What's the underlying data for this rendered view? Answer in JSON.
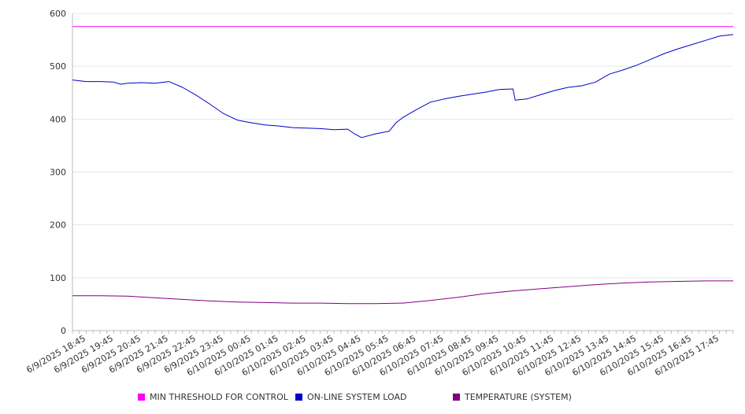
{
  "chart_data": {
    "type": "line",
    "ylim": [
      0,
      600
    ],
    "y_ticks": [
      0,
      100,
      200,
      300,
      400,
      500,
      600
    ],
    "grid": true,
    "legend_position": "bottom",
    "x_range": [
      "6/9/2025 18:15",
      "6/10/2025 18:15"
    ],
    "x_tick_labels": [
      "6/9/2025 18:45",
      "6/9/2025 19:45",
      "6/9/2025 20:45",
      "6/9/2025 21:45",
      "6/9/2025 22:45",
      "6/9/2025 23:45",
      "6/10/2025 00:45",
      "6/10/2025 01:45",
      "6/10/2025 02:45",
      "6/10/2025 03:45",
      "6/10/2025 04:45",
      "6/10/2025 05:45",
      "6/10/2025 06:45",
      "6/10/2025 07:45",
      "6/10/2025 08:45",
      "6/10/2025 09:45",
      "6/10/2025 10:45",
      "6/10/2025 11:45",
      "6/10/2025 12:45",
      "6/10/2025 13:45",
      "6/10/2025 14:45",
      "6/10/2025 15:45",
      "6/10/2025 16:45",
      "6/10/2025 17:45"
    ],
    "series": [
      {
        "name": "MIN THRESHOLD FOR CONTROL",
        "color": "#ff00ff",
        "points": [
          [
            "6/9/2025 18:15",
            575
          ],
          [
            "6/10/2025 18:15",
            575
          ]
        ]
      },
      {
        "name": "ON-LINE SYSTEM LOAD",
        "color": "#0000cc",
        "points": [
          [
            "6/9/2025 18:15",
            474
          ],
          [
            "6/9/2025 18:45",
            471
          ],
          [
            "6/9/2025 19:15",
            471
          ],
          [
            "6/9/2025 19:45",
            470
          ],
          [
            "6/9/2025 20:00",
            466
          ],
          [
            "6/9/2025 20:15",
            468
          ],
          [
            "6/9/2025 20:45",
            469
          ],
          [
            "6/9/2025 21:15",
            468
          ],
          [
            "6/9/2025 21:45",
            471
          ],
          [
            "6/9/2025 22:15",
            460
          ],
          [
            "6/9/2025 22:45",
            445
          ],
          [
            "6/9/2025 23:15",
            428
          ],
          [
            "6/9/2025 23:45",
            410
          ],
          [
            "6/10/2025 00:15",
            398
          ],
          [
            "6/10/2025 00:45",
            393
          ],
          [
            "6/10/2025 01:15",
            389
          ],
          [
            "6/10/2025 01:45",
            387
          ],
          [
            "6/10/2025 02:15",
            384
          ],
          [
            "6/10/2025 02:45",
            383
          ],
          [
            "6/10/2025 03:15",
            382
          ],
          [
            "6/10/2025 03:45",
            380
          ],
          [
            "6/10/2025 04:15",
            381
          ],
          [
            "6/10/2025 04:30",
            372
          ],
          [
            "6/10/2025 04:45",
            365
          ],
          [
            "6/10/2025 05:15",
            372
          ],
          [
            "6/10/2025 05:45",
            377
          ],
          [
            "6/10/2025 06:00",
            393
          ],
          [
            "6/10/2025 06:15",
            403
          ],
          [
            "6/10/2025 06:45",
            418
          ],
          [
            "6/10/2025 07:15",
            432
          ],
          [
            "6/10/2025 07:45",
            438
          ],
          [
            "6/10/2025 08:15",
            443
          ],
          [
            "6/10/2025 08:45",
            447
          ],
          [
            "6/10/2025 09:15",
            451
          ],
          [
            "6/10/2025 09:45",
            456
          ],
          [
            "6/10/2025 10:15",
            457
          ],
          [
            "6/10/2025 10:20",
            436
          ],
          [
            "6/10/2025 10:45",
            438
          ],
          [
            "6/10/2025 11:15",
            446
          ],
          [
            "6/10/2025 11:45",
            454
          ],
          [
            "6/10/2025 12:15",
            460
          ],
          [
            "6/10/2025 12:45",
            463
          ],
          [
            "6/10/2025 13:15",
            470
          ],
          [
            "6/10/2025 13:45",
            485
          ],
          [
            "6/10/2025 14:15",
            493
          ],
          [
            "6/10/2025 14:45",
            502
          ],
          [
            "6/10/2025 15:15",
            513
          ],
          [
            "6/10/2025 15:45",
            524
          ],
          [
            "6/10/2025 16:15",
            533
          ],
          [
            "6/10/2025 16:45",
            541
          ],
          [
            "6/10/2025 17:15",
            549
          ],
          [
            "6/10/2025 17:45",
            557
          ],
          [
            "6/10/2025 18:15",
            560
          ]
        ]
      },
      {
        "name": "TEMPERATURE (SYSTEM)",
        "color": "#800080",
        "points": [
          [
            "6/9/2025 18:15",
            66
          ],
          [
            "6/9/2025 19:15",
            66
          ],
          [
            "6/9/2025 20:15",
            65
          ],
          [
            "6/9/2025 21:15",
            62
          ],
          [
            "6/9/2025 22:15",
            59
          ],
          [
            "6/9/2025 23:15",
            56
          ],
          [
            "6/10/2025 00:15",
            54
          ],
          [
            "6/10/2025 01:15",
            53
          ],
          [
            "6/10/2025 02:15",
            52
          ],
          [
            "6/10/2025 03:15",
            52
          ],
          [
            "6/10/2025 04:15",
            51
          ],
          [
            "6/10/2025 05:15",
            51
          ],
          [
            "6/10/2025 06:15",
            52
          ],
          [
            "6/10/2025 07:15",
            57
          ],
          [
            "6/10/2025 08:15",
            63
          ],
          [
            "6/10/2025 09:15",
            70
          ],
          [
            "6/10/2025 10:15",
            75
          ],
          [
            "6/10/2025 11:15",
            79
          ],
          [
            "6/10/2025 12:15",
            83
          ],
          [
            "6/10/2025 13:15",
            87
          ],
          [
            "6/10/2025 14:15",
            90
          ],
          [
            "6/10/2025 15:15",
            92
          ],
          [
            "6/10/2025 16:15",
            93
          ],
          [
            "6/10/2025 17:15",
            94
          ],
          [
            "6/10/2025 18:15",
            94
          ]
        ]
      }
    ]
  },
  "colors": {
    "grid": "#e6e6e6",
    "axis": "#bbbbbb",
    "label": "#333333"
  }
}
